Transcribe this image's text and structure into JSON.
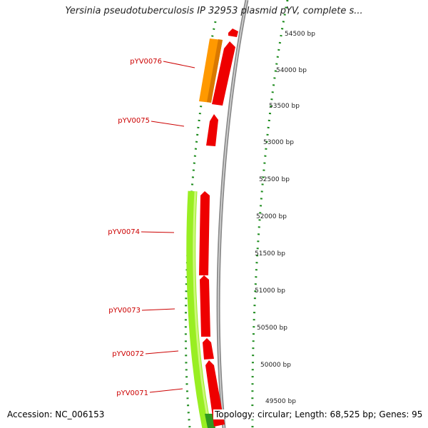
{
  "title": "Yersinia pseudotuberculosis IP 32953 plasmid pYV, complete s...",
  "accession": "Accession: NC_006153",
  "summary": "Topology: circular; Length: 68,525 bp; Genes: 95",
  "scale": {
    "ticks": [
      {
        "bp": 54500,
        "label": "54500 bp"
      },
      {
        "bp": 54000,
        "label": "54000 bp"
      },
      {
        "bp": 53500,
        "label": "53500 bp"
      },
      {
        "bp": 53000,
        "label": "53000 bp"
      },
      {
        "bp": 52500,
        "label": "52500 bp"
      },
      {
        "bp": 52000,
        "label": "52000 bp"
      },
      {
        "bp": 51500,
        "label": "51500 bp"
      },
      {
        "bp": 51000,
        "label": "51000 bp"
      },
      {
        "bp": 50500,
        "label": "50500 bp"
      },
      {
        "bp": 50000,
        "label": "50000 bp"
      },
      {
        "bp": 49500,
        "label": "49500 bp"
      }
    ]
  },
  "gene_labels": [
    "pYV0076",
    "pYV0075",
    "pYV0074",
    "pYV0073",
    "pYV0072",
    "pYV0071"
  ],
  "colors": {
    "cds": "#ee0000",
    "orange_feature": "#ff9900",
    "green_feature": "#99ee22",
    "backbone": "#888888",
    "tick_marks": "#1a8a1a",
    "label": "#cc0000"
  }
}
